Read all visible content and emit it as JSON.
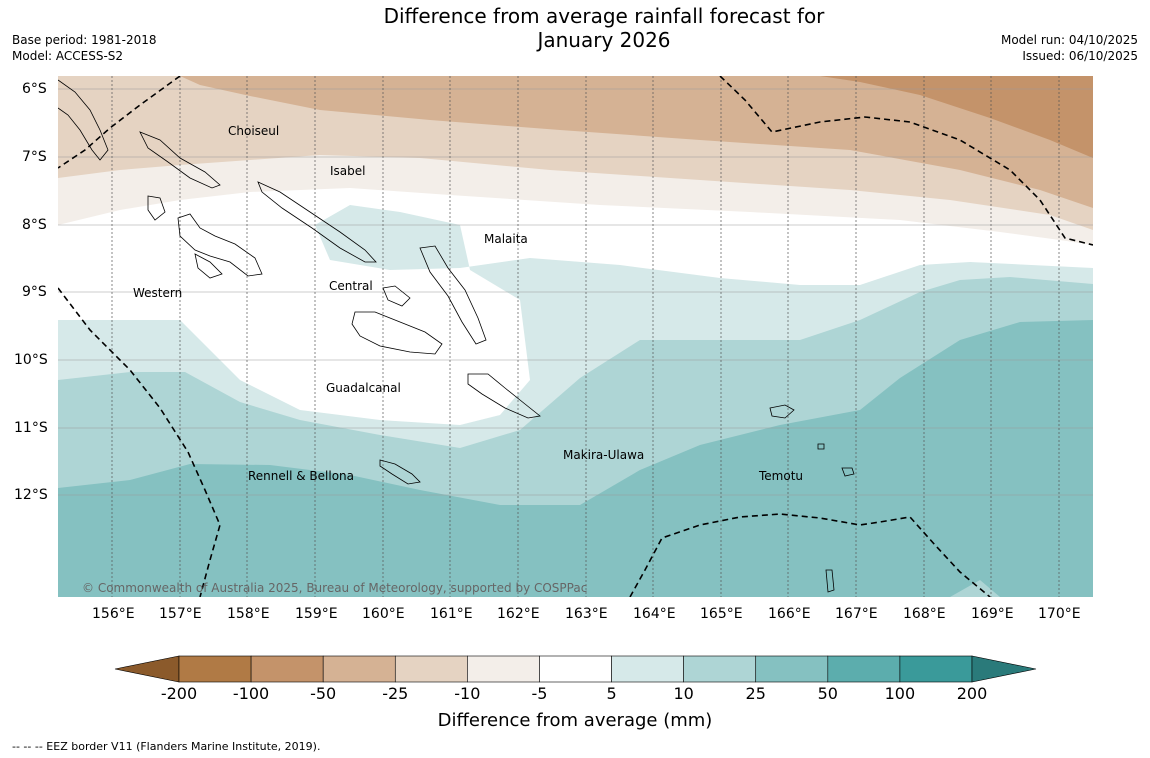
{
  "title": {
    "line1": "Difference from average rainfall forecast for",
    "line2": "January 2026"
  },
  "meta": {
    "base_period": "Base period: 1981-2018",
    "model": "Model: ACCESS-S2",
    "model_run": "Model run: 04/10/2025",
    "issued": "Issued: 06/10/2025"
  },
  "map": {
    "lat_labels": [
      "6°S",
      "7°S",
      "8°S",
      "9°S",
      "10°S",
      "11°S",
      "12°S"
    ],
    "lon_labels": [
      "156°E",
      "157°E",
      "158°E",
      "159°E",
      "160°E",
      "161°E",
      "162°E",
      "163°E",
      "164°E",
      "165°E",
      "166°E",
      "167°E",
      "168°E",
      "169°E",
      "170°E"
    ],
    "regions": [
      {
        "name": "Choiseul"
      },
      {
        "name": "Isabel"
      },
      {
        "name": "Malaita"
      },
      {
        "name": "Western"
      },
      {
        "name": "Central"
      },
      {
        "name": "Guadalcanal"
      },
      {
        "name": "Makira-Ulawa"
      },
      {
        "name": "Rennell & Bellona"
      },
      {
        "name": "Temotu"
      }
    ],
    "copyright": "© Commonwealth of Australia 2025, Bureau of Meteorology, supported by COSPPac"
  },
  "colorbar": {
    "label": "Difference from average (mm)",
    "ticks": [
      "-200",
      "-100",
      "-50",
      "-25",
      "-10",
      "-5",
      "5",
      "10",
      "25",
      "50",
      "100",
      "200"
    ],
    "colors": [
      "#8b5a2b",
      "#b07a45",
      "#c4936a",
      "#d5b294",
      "#e5d3c2",
      "#f3eee9",
      "#ffffff",
      "#d6e9e9",
      "#aed5d5",
      "#85c1c1",
      "#5cadad",
      "#3a9a9a",
      "#2a7a7a"
    ]
  },
  "eez_legend": "--  --  -- EEZ border V11 (Flanders Marine Institute, 2019)."
}
